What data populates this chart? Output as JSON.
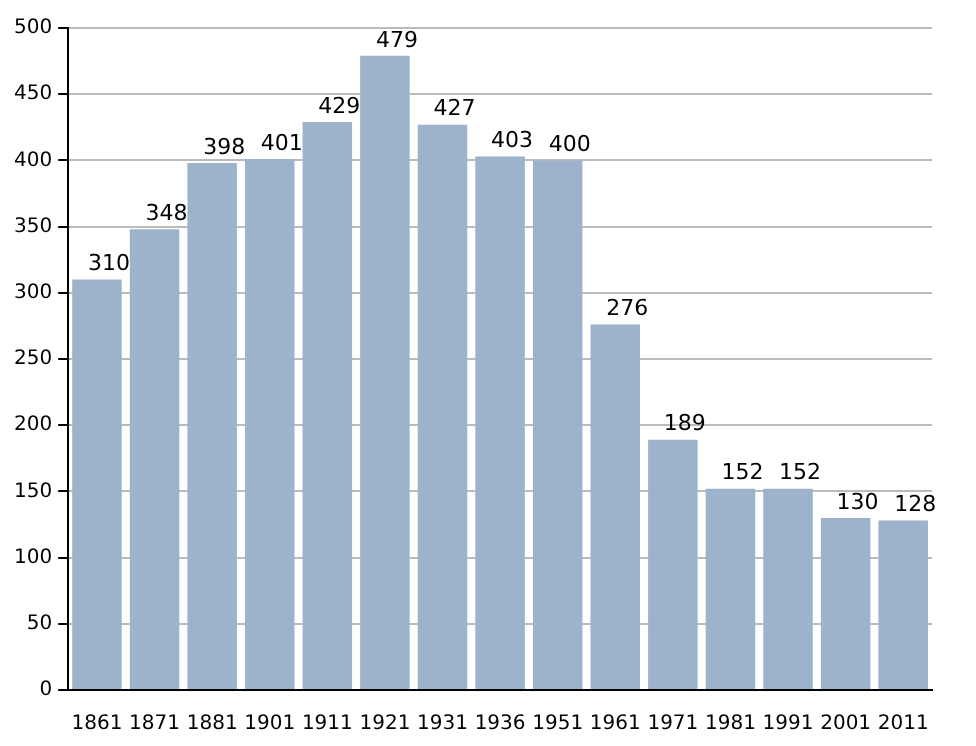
{
  "chart_data": {
    "type": "bar",
    "categories": [
      "1861",
      "1871",
      "1881",
      "1901",
      "1911",
      "1921",
      "1931",
      "1936",
      "1951",
      "1961",
      "1971",
      "1981",
      "1991",
      "2001",
      "2011"
    ],
    "values": [
      310,
      348,
      398,
      401,
      429,
      479,
      427,
      403,
      400,
      276,
      189,
      152,
      152,
      130,
      128
    ],
    "color": "#9db3cb",
    "data_labels": true,
    "grid": "y",
    "ylim": [
      0,
      500
    ],
    "yticks": [
      0,
      50,
      100,
      150,
      200,
      250,
      300,
      350,
      400,
      450,
      500
    ]
  }
}
